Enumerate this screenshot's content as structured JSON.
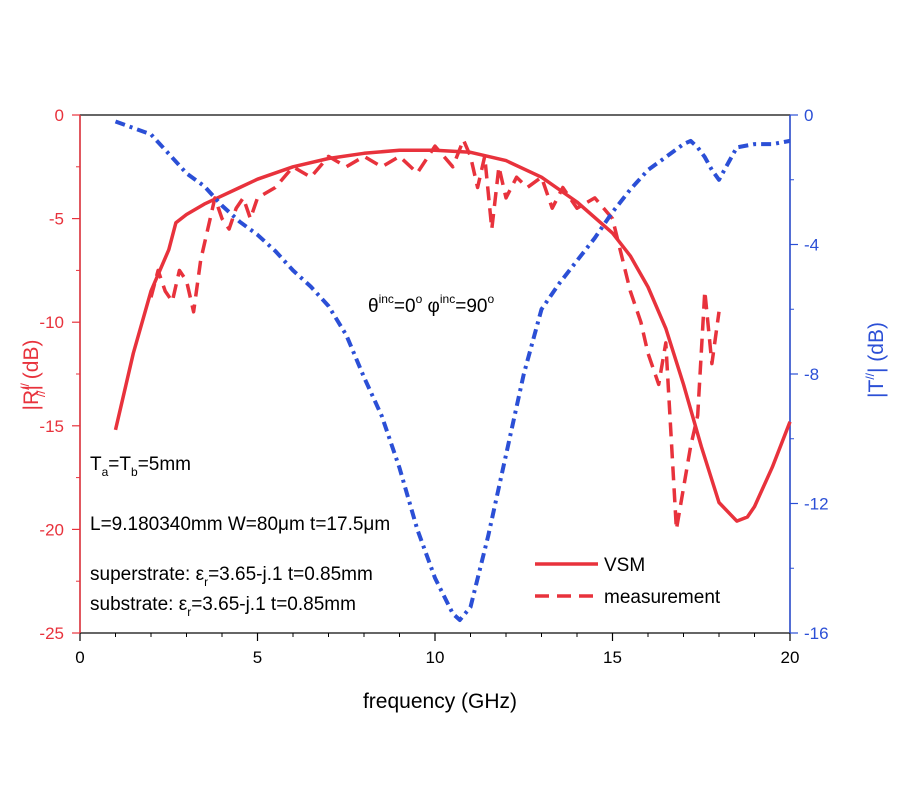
{
  "chart_data": {
    "type": "line",
    "title": "",
    "xlabel": "frequency (GHz)",
    "ylabel_left": {
      "main": "|R",
      "sup": "//",
      "sub": "//",
      "rest": "| (dB)"
    },
    "ylabel_right": {
      "main": "|T",
      "sup": "//",
      "rest": "| (dB)"
    },
    "xlim": [
      0,
      20
    ],
    "ylim_left": [
      -25,
      0
    ],
    "ylim_right": [
      -16,
      0
    ],
    "x_ticks": [
      0,
      5,
      10,
      15,
      20
    ],
    "x_tick_labels": [
      "0",
      "5",
      "10",
      "15",
      "20"
    ],
    "y_left_ticks": [
      0,
      -5,
      -10,
      -15,
      -20,
      -25
    ],
    "y_left_tick_labels": [
      "0",
      "-5",
      "-10",
      "-15",
      "-20",
      "-25"
    ],
    "y_right_ticks": [
      0,
      -4,
      -8,
      -12,
      -16
    ],
    "y_right_tick_labels": [
      "0",
      "-4",
      "-8",
      "-12",
      "-16"
    ],
    "colors": {
      "reflection": "#e8323c",
      "transmission": "#2b4fd6",
      "axis_left": "#e8323c",
      "axis_right": "#2b4fd6",
      "frame": "#000000"
    },
    "series": [
      {
        "name": "VSM",
        "axis": "left",
        "style": "solid",
        "color": "#e8323c",
        "x": [
          1.0,
          1.5,
          2.0,
          2.5,
          2.7,
          3.0,
          3.5,
          4.0,
          4.5,
          5.0,
          6.0,
          7.0,
          8.0,
          9.0,
          10.0,
          11.0,
          12.0,
          13.0,
          14.0,
          15.0,
          15.5,
          16.0,
          16.5,
          17.0,
          17.5,
          18.0,
          18.5,
          18.8,
          19.0,
          19.5,
          20.0
        ],
        "y": [
          -15.2,
          -11.5,
          -8.5,
          -6.5,
          -5.2,
          -4.8,
          -4.3,
          -3.9,
          -3.5,
          -3.1,
          -2.5,
          -2.1,
          -1.85,
          -1.7,
          -1.7,
          -1.8,
          -2.2,
          -3.0,
          -4.2,
          -5.7,
          -6.8,
          -8.3,
          -10.3,
          -13.0,
          -16.0,
          -18.7,
          -19.6,
          -19.4,
          -18.9,
          -17.0,
          -14.8
        ]
      },
      {
        "name": "measurement",
        "axis": "left",
        "style": "dashed",
        "color": "#e8323c",
        "x": [
          2.0,
          2.2,
          2.4,
          2.6,
          2.8,
          3.0,
          3.2,
          3.4,
          3.6,
          3.8,
          4.0,
          4.2,
          4.4,
          4.6,
          4.8,
          5.0,
          5.5,
          6.0,
          6.5,
          7.0,
          7.5,
          8.0,
          8.5,
          9.0,
          9.5,
          10.0,
          10.5,
          10.8,
          11.0,
          11.2,
          11.4,
          11.6,
          11.8,
          12.0,
          12.3,
          12.6,
          13.0,
          13.3,
          13.6,
          14.0,
          14.5,
          15.0,
          15.5,
          15.8,
          16.0,
          16.3,
          16.5,
          16.8,
          17.0,
          17.2,
          17.4,
          17.6,
          17.8,
          18.0
        ],
        "y": [
          -8.8,
          -7.5,
          -8.5,
          -9.0,
          -7.5,
          -8.0,
          -9.5,
          -7.0,
          -5.5,
          -4.0,
          -5.0,
          -5.5,
          -4.5,
          -4.0,
          -5.0,
          -4.0,
          -3.5,
          -2.5,
          -3.0,
          -2.0,
          -2.5,
          -2.0,
          -2.5,
          -2.0,
          -2.8,
          -1.5,
          -2.5,
          -1.2,
          -2.0,
          -3.5,
          -2.0,
          -5.5,
          -2.5,
          -4.0,
          -3.0,
          -3.5,
          -3.0,
          -4.5,
          -3.5,
          -4.5,
          -4.0,
          -5.0,
          -8.5,
          -10.0,
          -11.5,
          -13.0,
          -11.0,
          -20.0,
          -18.0,
          -16.0,
          -14.5,
          -8.5,
          -12.0,
          -9.5
        ]
      },
      {
        "name": "transmission",
        "axis": "right",
        "style": "dash-dot",
        "color": "#2b4fd6",
        "x": [
          1.0,
          1.5,
          2.0,
          2.5,
          3.0,
          3.5,
          4.0,
          4.5,
          5.0,
          5.5,
          6.0,
          6.5,
          7.0,
          7.5,
          8.0,
          8.5,
          9.0,
          9.5,
          10.0,
          10.5,
          10.7,
          11.0,
          11.5,
          12.0,
          12.5,
          13.0,
          13.5,
          14.0,
          14.5,
          15.0,
          15.5,
          16.0,
          16.5,
          17.0,
          17.2,
          17.4,
          17.6,
          17.8,
          18.0,
          18.5,
          19.0,
          19.5,
          20.0
        ],
        "y": [
          -0.2,
          -0.4,
          -0.6,
          -1.2,
          -1.8,
          -2.2,
          -2.8,
          -3.3,
          -3.7,
          -4.2,
          -4.8,
          -5.3,
          -5.9,
          -6.8,
          -8.1,
          -9.3,
          -10.9,
          -12.8,
          -14.3,
          -15.4,
          -15.6,
          -15.2,
          -13.0,
          -10.5,
          -8.0,
          -6.0,
          -5.2,
          -4.5,
          -3.8,
          -3.0,
          -2.3,
          -1.7,
          -1.3,
          -0.9,
          -0.8,
          -1.0,
          -1.3,
          -1.7,
          -2.0,
          -1.0,
          -0.9,
          -0.9,
          -0.8
        ]
      }
    ],
    "legend": {
      "position": "bottom-right",
      "entries": [
        {
          "label": "VSM",
          "style": "solid"
        },
        {
          "label": "measurement",
          "style": "dashed"
        }
      ]
    },
    "annotations": {
      "angles": {
        "theta": "θ",
        "theta_sup": "inc",
        "theta_val": "=0",
        "theta_deg": "o",
        "phi": " φ",
        "phi_sup": "inc",
        "phi_val": "=90",
        "phi_deg": "o"
      },
      "tatb": {
        "t1": "T",
        "s1": "a",
        "mid": "=T",
        "s2": "b",
        "end": "=5mm"
      },
      "dims": "L=9.180340mm W=80μm t=17.5μm",
      "superstrate": {
        "prefix": "superstrate: ε",
        "sub": "r",
        "suffix": "=3.65-j.1 t=0.85mm"
      },
      "substrate": {
        "prefix": "substrate: ε",
        "sub": "r",
        "suffix": "=3.65-j.1 t=0.85mm"
      }
    }
  }
}
